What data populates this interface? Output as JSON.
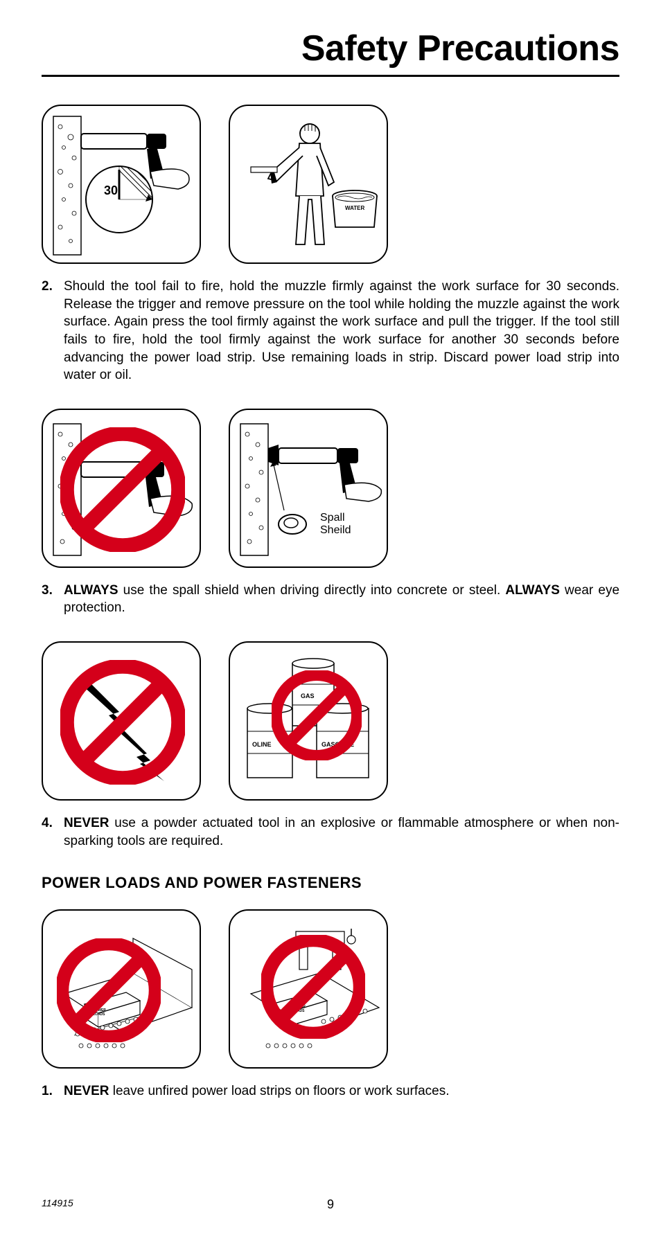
{
  "title": "Safety Precautions",
  "colors": {
    "text": "#000000",
    "background": "#ffffff",
    "prohibit_red": "#d4001a",
    "stroke": "#000000",
    "hatch": "#333333",
    "light_gray": "#cccccc"
  },
  "typography": {
    "title_fontsize": 52,
    "body_fontsize": 19,
    "heading_fontsize": 22,
    "footer_fontsize": 14
  },
  "diagrams": {
    "row1": {
      "box1": {
        "label_30": "30"
      },
      "box2": {
        "bucket_label": "WATER"
      }
    },
    "row2": {
      "box2": {
        "callout1": "Spall",
        "callout2": "Sheild"
      }
    },
    "row3": {
      "box2": {
        "barrel1": "GAS",
        "barrel2": "OLINE",
        "barrel3": "GASOLINE"
      }
    },
    "row4": {
      "box1": {
        "box_label": "POWER\nLOADS"
      },
      "box2": {
        "box_label": "POWER\nLOADS"
      }
    }
  },
  "instructions": [
    {
      "num": "2.",
      "parts": [
        {
          "bold": false,
          "text": "Should the tool fail to fire, hold the muzzle firmly against the work surface for 30 seconds. Release the trigger and remove pressure on the tool while holding the muzzle against the work surface. Again press the tool firmly against the work surface and pull the trigger. If the tool still fails to fire, hold the tool firmly against the work surface for another 30 seconds before advancing the power load strip. Use remaining loads in strip. Discard power load strip into water or oil."
        }
      ]
    },
    {
      "num": "3.",
      "parts": [
        {
          "bold": true,
          "text": "ALWAYS"
        },
        {
          "bold": false,
          "text": " use the spall shield when driving directly into concrete or steel. "
        },
        {
          "bold": true,
          "text": "ALWAYS"
        },
        {
          "bold": false,
          "text": " wear eye protection."
        }
      ]
    },
    {
      "num": "4.",
      "parts": [
        {
          "bold": true,
          "text": "NEVER"
        },
        {
          "bold": false,
          "text": " use a powder actuated tool in an explosive or flammable atmosphere or when non-sparking tools are required."
        }
      ]
    }
  ],
  "subsection_heading": "POWER LOADS AND POWER FASTENERS",
  "subsection_instructions": [
    {
      "num": "1.",
      "parts": [
        {
          "bold": true,
          "text": "NEVER"
        },
        {
          "bold": false,
          "text": " leave unfired power load strips on floors or work surfaces."
        }
      ]
    }
  ],
  "footer": {
    "docnum": "114915",
    "pagenum": "9"
  }
}
